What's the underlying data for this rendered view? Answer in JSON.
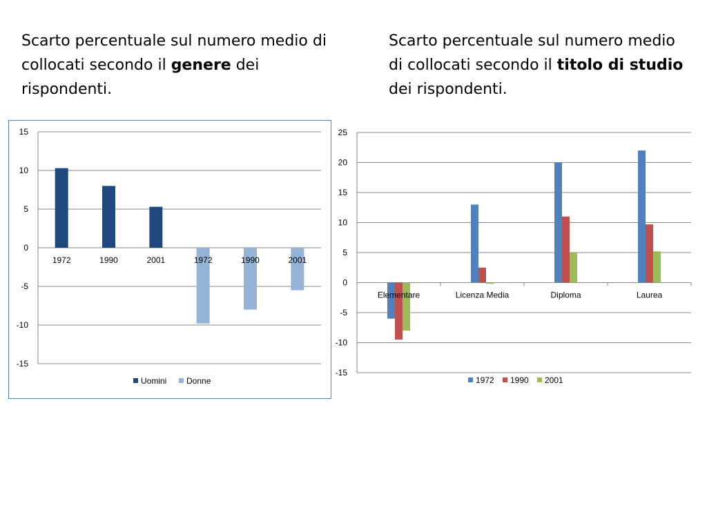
{
  "titles": {
    "left": {
      "before": "Scarto percentuale sul numero medio di collocati secondo il ",
      "bold": "genere",
      "after": " dei rispondenti."
    },
    "right": {
      "before": "Scarto percentuale sul numero medio di collocati secondo il ",
      "bold": "titolo di studio",
      "after": " dei rispondenti."
    }
  },
  "chart_data": [
    {
      "type": "bar",
      "categories": [
        "1972",
        "1990",
        "2001",
        "1972",
        "1990",
        "2001"
      ],
      "series": [
        {
          "name": "Uomini",
          "color": "#1f497d",
          "values": [
            10.3,
            8.0,
            5.3,
            null,
            null,
            null
          ]
        },
        {
          "name": "Donne",
          "color": "#95b3d7",
          "values": [
            null,
            null,
            null,
            -9.8,
            -8.0,
            -5.5
          ]
        }
      ],
      "title": "",
      "xlabel": "",
      "ylabel": "",
      "ylim": [
        -15,
        15
      ],
      "yticks": [
        15,
        10,
        5,
        0,
        -5,
        -10,
        -15
      ],
      "grid": true,
      "legend": "bottom"
    },
    {
      "type": "bar",
      "categories": [
        "Elementare",
        "Licenza Media",
        "Diploma",
        "Laurea"
      ],
      "series": [
        {
          "name": "1972",
          "color": "#4f81bd",
          "values": [
            -6,
            13,
            20,
            22
          ]
        },
        {
          "name": "1990",
          "color": "#c0504d",
          "values": [
            -9.5,
            2.5,
            11,
            9.7
          ]
        },
        {
          "name": "2001",
          "color": "#9bbb59",
          "values": [
            -8,
            -0.2,
            5,
            5.2
          ]
        }
      ],
      "title": "",
      "xlabel": "",
      "ylabel": "",
      "ylim": [
        -15,
        25
      ],
      "yticks": [
        25,
        20,
        15,
        10,
        5,
        0,
        -5,
        -10,
        -15
      ],
      "grid": true,
      "legend": "bottom"
    }
  ]
}
